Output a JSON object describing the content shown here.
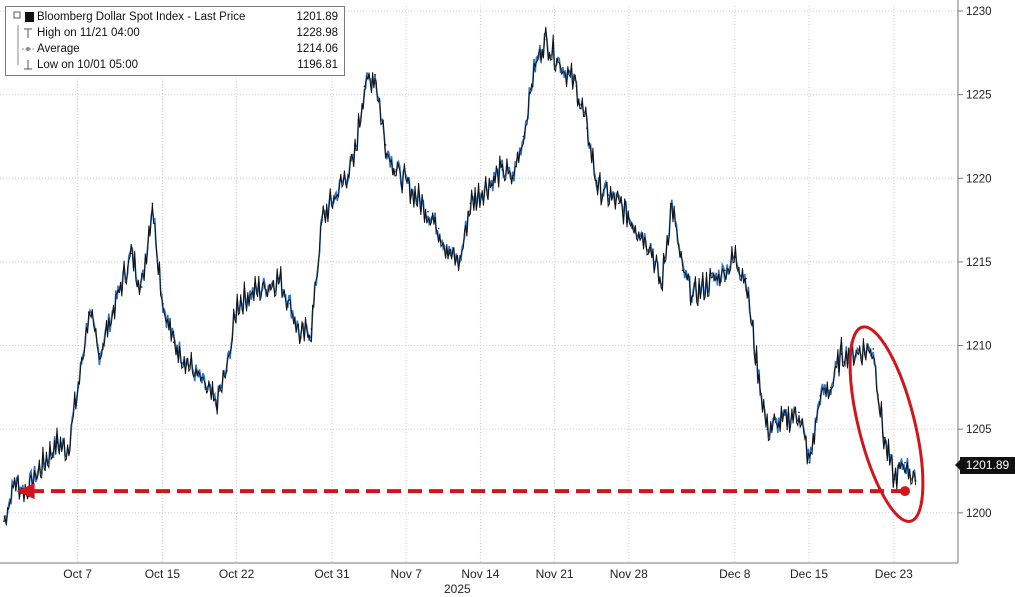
{
  "legend": {
    "title": "Bloomberg Dollar Spot Index - Last Price",
    "last_value": "1201.89",
    "rows": [
      {
        "label": "High on 11/21 04:00",
        "value": "1228.98"
      },
      {
        "label": "Average",
        "value": "1214.06"
      },
      {
        "label": "Low on 10/01 05:00",
        "value": "1196.81"
      }
    ]
  },
  "price_tag": "1201.89",
  "year_label": "2025",
  "colors": {
    "line_dark": "#111111",
    "line_blue": "#2f74c6",
    "annotation_red": "#d0161c",
    "grid": "#cfcfcf",
    "axis": "#7a7a7a"
  },
  "chart_data": {
    "type": "line",
    "title": "Bloomberg Dollar Spot Index - Last Price",
    "xlabel": "",
    "ylabel": "",
    "y_ticks": [
      1200,
      1205,
      1210,
      1215,
      1220,
      1225,
      1230
    ],
    "ylim": [
      1197,
      1230.3
    ],
    "x_ticks": [
      "Oct 7",
      "Oct 15",
      "Oct 22",
      "Oct 31",
      "Nov 7",
      "Nov 14",
      "Nov 21",
      "Nov 28",
      "Dec 8",
      "Dec 15",
      "Dec 23"
    ],
    "x_tick_year": "2025",
    "grid": true,
    "legend_position": "top-left",
    "series": [
      {
        "name": "Bloomberg Dollar Spot Index - Last Price",
        "points": [
          [
            "10/01",
            1199.5
          ],
          [
            "10/02",
            1201.9
          ],
          [
            "10/03",
            1201.3
          ],
          [
            "10/06",
            1204.2
          ],
          [
            "10/07",
            1203.8
          ],
          [
            "10/08",
            1207.5
          ],
          [
            "10/09",
            1212.0
          ],
          [
            "10/10",
            1209.5
          ],
          [
            "10/13",
            1215.5
          ],
          [
            "10/14",
            1213.5
          ],
          [
            "10/15",
            1218.5
          ],
          [
            "10/16",
            1212.5
          ],
          [
            "10/17",
            1210.2
          ],
          [
            "10/20",
            1207.5
          ],
          [
            "10/21",
            1206.5
          ],
          [
            "10/22",
            1208.5
          ],
          [
            "10/23",
            1212.5
          ],
          [
            "10/24",
            1213.0
          ],
          [
            "10/27",
            1214.0
          ],
          [
            "10/28",
            1212.5
          ],
          [
            "10/29",
            1210.5
          ],
          [
            "10/30",
            1211.0
          ],
          [
            "10/31",
            1217.5
          ],
          [
            "11/03",
            1221.0
          ],
          [
            "11/04",
            1225.5
          ],
          [
            "11/05",
            1226.2
          ],
          [
            "11/06",
            1222.0
          ],
          [
            "11/07",
            1220.5
          ],
          [
            "11/10",
            1218.0
          ],
          [
            "11/11",
            1217.0
          ],
          [
            "11/12",
            1215.5
          ],
          [
            "11/13",
            1215.0
          ],
          [
            "11/14",
            1218.5
          ],
          [
            "11/17",
            1220.5
          ],
          [
            "11/18",
            1220.0
          ],
          [
            "11/19",
            1222.5
          ],
          [
            "11/20",
            1226.5
          ],
          [
            "11/21",
            1228.3
          ],
          [
            "11/24",
            1225.5
          ],
          [
            "11/25",
            1223.0
          ],
          [
            "11/26",
            1219.5
          ],
          [
            "11/27",
            1219.0
          ],
          [
            "11/28",
            1218.5
          ],
          [
            "12/01",
            1216.0
          ],
          [
            "12/02",
            1213.5
          ],
          [
            "12/03",
            1218.5
          ],
          [
            "12/04",
            1214.5
          ],
          [
            "12/05",
            1213.0
          ],
          [
            "12/08",
            1214.5
          ],
          [
            "12/09",
            1215.3
          ],
          [
            "12/10",
            1214.0
          ],
          [
            "12/11",
            1209.0
          ],
          [
            "12/12",
            1205.0
          ],
          [
            "12/15",
            1206.0
          ],
          [
            "12/16",
            1203.0
          ],
          [
            "12/17",
            1207.0
          ],
          [
            "12/18",
            1207.5
          ],
          [
            "12/19",
            1209.5
          ],
          [
            "12/22",
            1209.8
          ],
          [
            "12/23",
            1204.5
          ],
          [
            "12/24",
            1202.0
          ],
          [
            "12/25",
            1203.0
          ],
          [
            "12/26",
            1201.9
          ]
        ]
      }
    ],
    "annotations": [
      {
        "type": "dashed-arrow",
        "color": "red",
        "from": [
          "12/25",
          1201.3
        ],
        "to": [
          "10/02",
          1201.3
        ]
      },
      {
        "type": "ellipse",
        "color": "red",
        "around": [
          "12/19",
          "12/26"
        ]
      }
    ]
  }
}
